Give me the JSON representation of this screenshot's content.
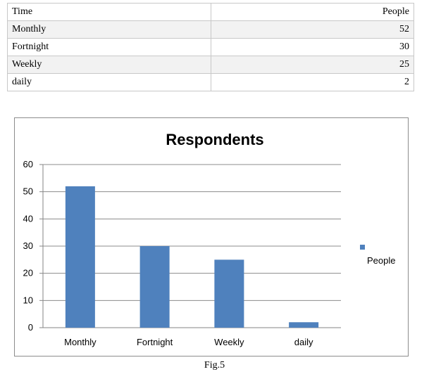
{
  "table": {
    "headers": [
      "Time",
      "People"
    ],
    "rows": [
      [
        "Monthly",
        "52"
      ],
      [
        "Fortnight",
        "30"
      ],
      [
        "Weekly",
        "25"
      ],
      [
        "daily",
        "2"
      ]
    ]
  },
  "chart_data": {
    "type": "bar",
    "title": "Respondents",
    "categories": [
      "Monthly",
      "Fortnight",
      "Weekly",
      "daily"
    ],
    "series": [
      {
        "name": "People",
        "values": [
          52,
          30,
          25,
          2
        ],
        "color": "#4f81bd"
      }
    ],
    "ylim": [
      0,
      60
    ],
    "yticks": [
      0,
      10,
      20,
      30,
      40,
      50,
      60
    ],
    "grid": true,
    "legend": "right"
  },
  "caption": "Fig.5"
}
